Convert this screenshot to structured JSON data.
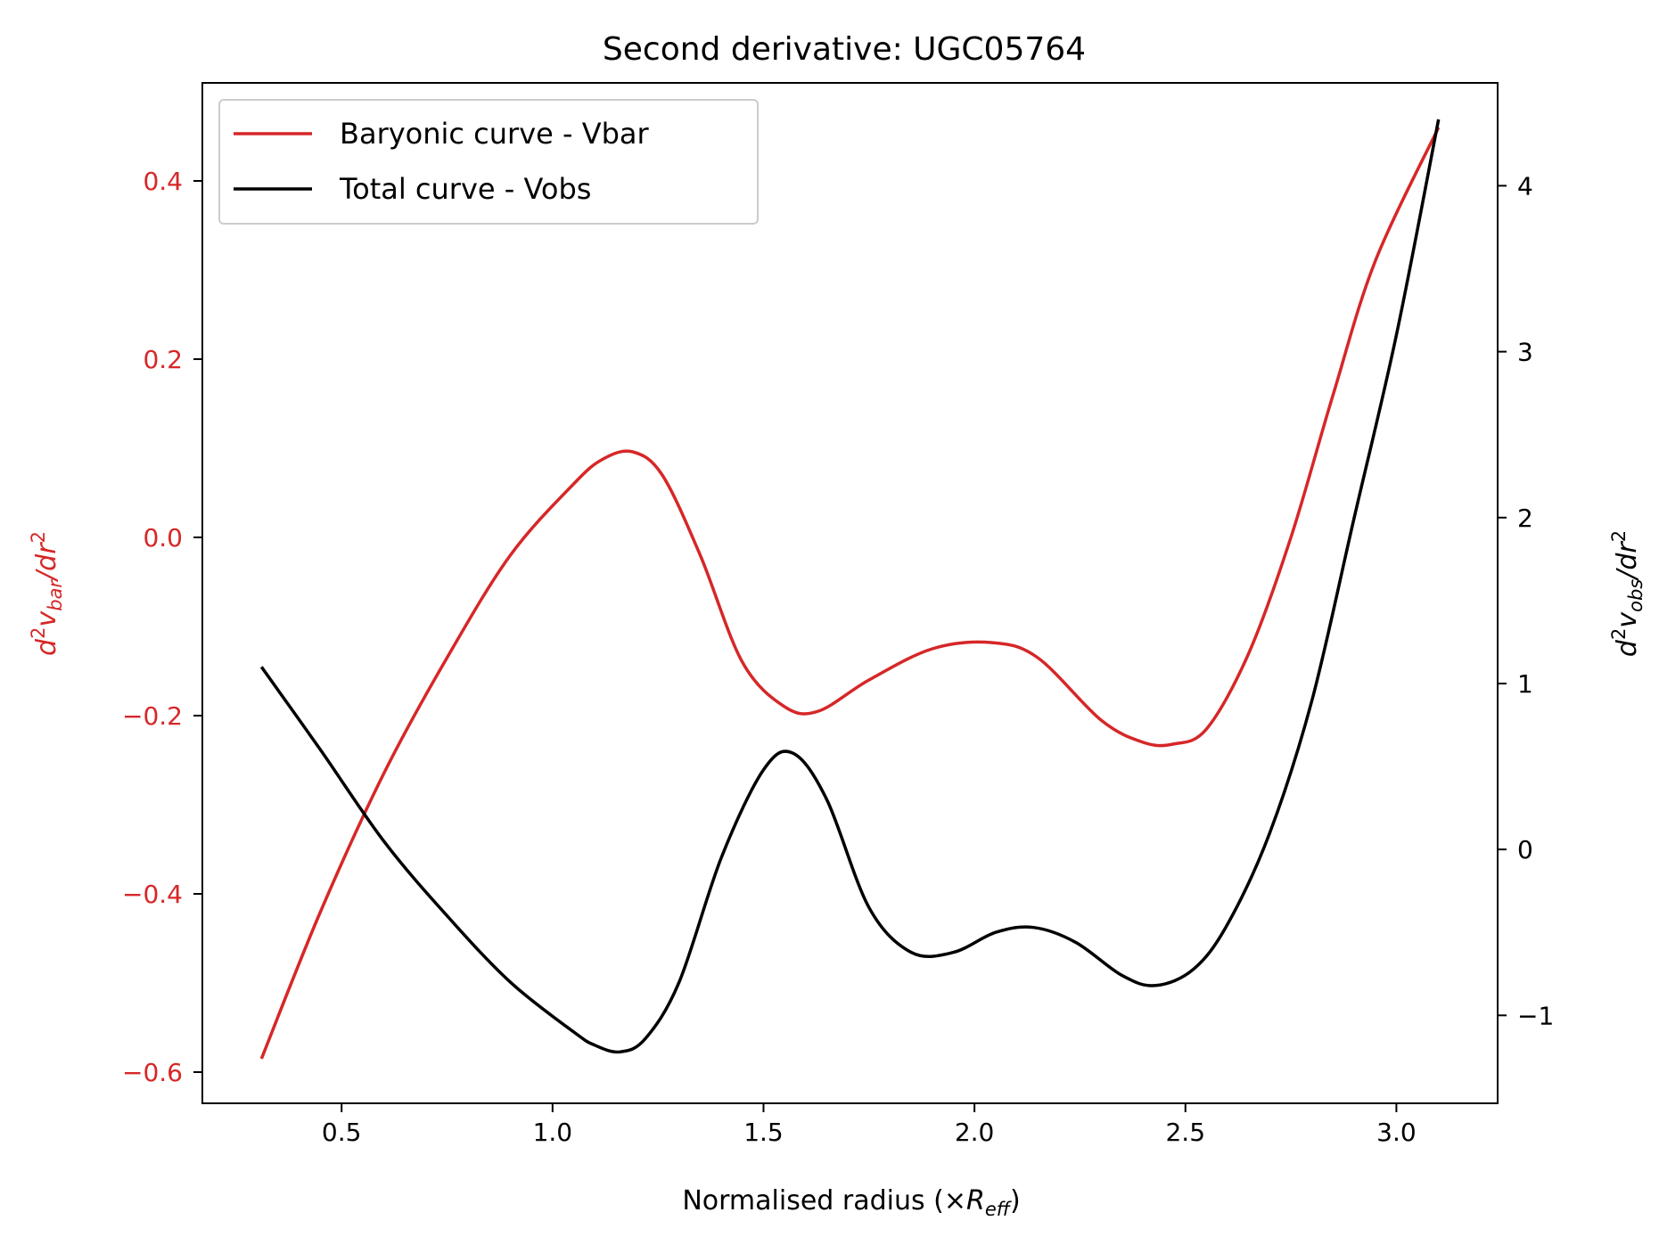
{
  "chart_data": {
    "type": "line",
    "title": "Second derivative: UGC05764",
    "xlabel": {
      "main": "Normalised radius (×",
      "var": "R",
      "sub": "eff",
      "close": ")"
    },
    "ylabel_left": {
      "d": "d",
      "sup1": "2",
      "v": "v",
      "sub": "bar",
      "sep": "/",
      "dr": "dr",
      "sup2": "2"
    },
    "ylabel_right": {
      "d": "d",
      "sup1": "2",
      "v": "v",
      "sub": "obs",
      "sep": "/",
      "dr": "dr",
      "sup2": "2"
    },
    "xlim": [
      0.17,
      3.24
    ],
    "ylim_left": [
      -0.635,
      0.51
    ],
    "ylim_right": [
      -1.53,
      4.62
    ],
    "x_ticks": [
      "0.5",
      "1.0",
      "1.5",
      "2.0",
      "2.5",
      "3.0"
    ],
    "y_ticks_left": [
      "0.4",
      "0.2",
      "0.0",
      "−0.2",
      "−0.4",
      "−0.6"
    ],
    "y_ticks_right": [
      "4",
      "3",
      "2",
      "1",
      "0",
      "−1"
    ],
    "legend_position": "top-left",
    "grid": false,
    "colors": {
      "vbar": "#d62728",
      "vobs": "#000000"
    },
    "series": [
      {
        "name": "Baryonic curve - Vbar",
        "axis": "left",
        "x": [
          0.31,
          0.45,
          0.6,
          0.75,
          0.9,
          1.05,
          1.12,
          1.19,
          1.26,
          1.35,
          1.45,
          1.55,
          1.63,
          1.75,
          1.9,
          2.04,
          2.15,
          2.3,
          2.4,
          2.47,
          2.55,
          2.65,
          2.75,
          2.85,
          2.95,
          3.1
        ],
        "values": [
          -0.585,
          -0.42,
          -0.265,
          -0.135,
          -0.02,
          0.06,
          0.088,
          0.096,
          0.07,
          -0.02,
          -0.14,
          -0.19,
          -0.195,
          -0.16,
          -0.125,
          -0.118,
          -0.135,
          -0.205,
          -0.23,
          -0.232,
          -0.215,
          -0.13,
          0.0,
          0.16,
          0.31,
          0.46
        ]
      },
      {
        "name": "Total curve - Vobs",
        "axis": "right",
        "x": [
          0.31,
          0.45,
          0.6,
          0.75,
          0.9,
          1.05,
          1.1,
          1.16,
          1.22,
          1.3,
          1.4,
          1.5,
          1.57,
          1.65,
          1.75,
          1.85,
          1.95,
          2.05,
          2.14,
          2.24,
          2.35,
          2.43,
          2.52,
          2.6,
          2.7,
          2.8,
          2.9,
          3.0,
          3.1
        ],
        "values": [
          1.1,
          0.6,
          0.05,
          -0.4,
          -0.8,
          -1.1,
          -1.18,
          -1.22,
          -1.14,
          -0.8,
          -0.05,
          0.48,
          0.58,
          0.3,
          -0.35,
          -0.62,
          -0.62,
          -0.5,
          -0.47,
          -0.56,
          -0.76,
          -0.82,
          -0.72,
          -0.45,
          0.1,
          0.9,
          2.0,
          3.1,
          4.4
        ]
      }
    ]
  }
}
